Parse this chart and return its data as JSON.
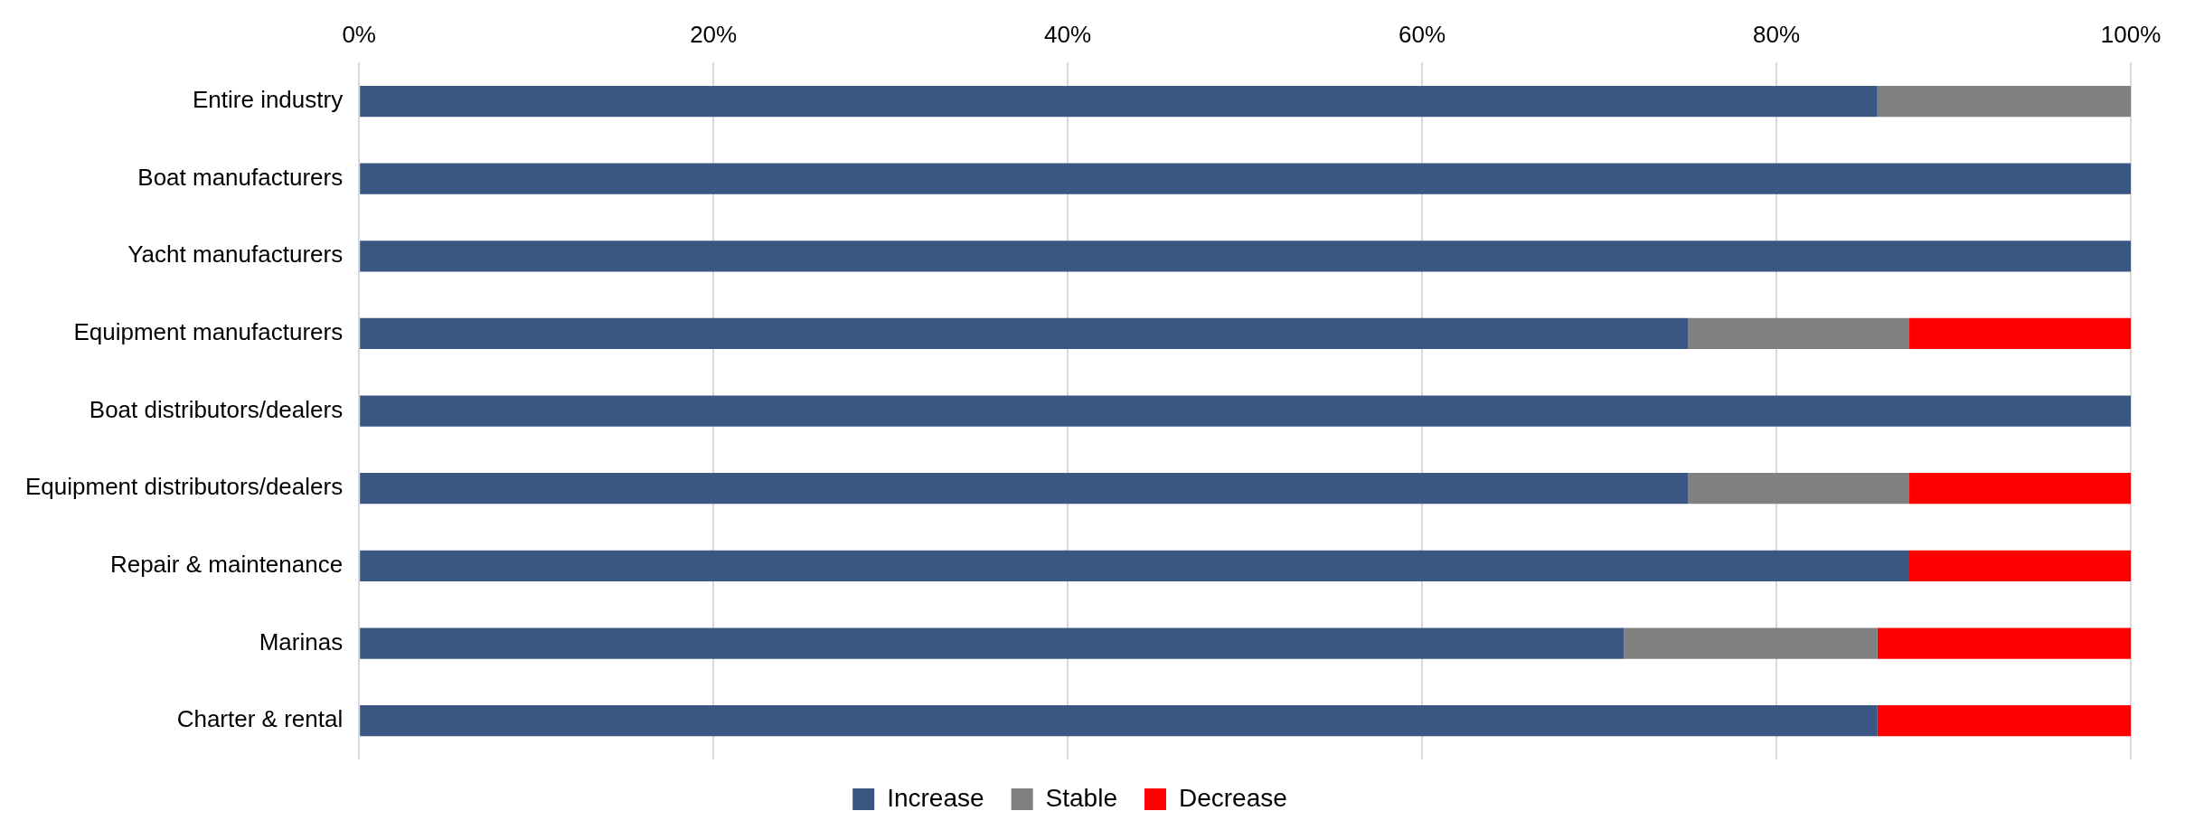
{
  "chart_data": {
    "type": "bar",
    "orientation": "horizontal",
    "stacked": true,
    "categories": [
      "Entire industry",
      "Boat manufacturers",
      "Yacht manufacturers",
      "Equipment manufacturers",
      "Boat distributors/dealers",
      "Equipment distributors/dealers",
      "Repair & maintenance",
      "Marinas",
      "Charter & rental"
    ],
    "series": [
      {
        "name": "Increase",
        "color": "#3a5683",
        "values": [
          85.7,
          100,
          100,
          75,
          100,
          75,
          87.5,
          71.4,
          85.7
        ]
      },
      {
        "name": "Stable",
        "color": "#808080",
        "values": [
          14.3,
          0,
          0,
          12.5,
          0,
          12.5,
          0,
          14.3,
          0
        ]
      },
      {
        "name": "Decrease",
        "color": "#ff0000",
        "values": [
          0,
          0,
          0,
          12.5,
          0,
          12.5,
          12.5,
          14.3,
          14.3
        ]
      }
    ],
    "xlim": [
      0,
      100
    ],
    "xticks": [
      {
        "value": 0,
        "label": "0%"
      },
      {
        "value": 20,
        "label": "20%"
      },
      {
        "value": 40,
        "label": "40%"
      },
      {
        "value": 60,
        "label": "60%"
      },
      {
        "value": 80,
        "label": "80%"
      },
      {
        "value": 100,
        "label": "100%"
      }
    ],
    "grid": "x",
    "legend": "bottom"
  }
}
